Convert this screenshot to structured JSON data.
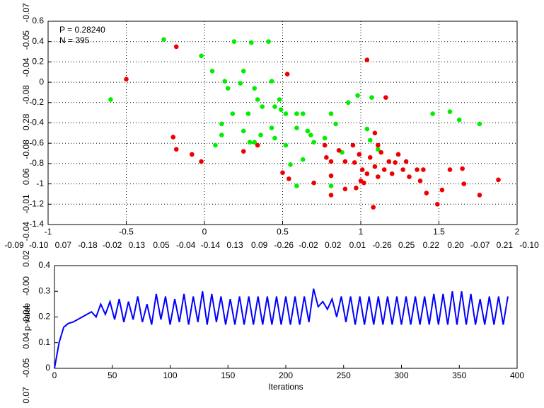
{
  "chart_data": [
    {
      "type": "scatter",
      "annotations": [
        "P = 0.28240",
        "N = 395"
      ],
      "xlim": [
        -1,
        2
      ],
      "xticks": [
        -1,
        -0.5,
        0,
        0.5,
        1,
        1.5,
        2
      ],
      "ylim": [
        -1.4,
        0.6
      ],
      "yticks": [
        -1.4,
        -1.2,
        -1,
        -0.8,
        -0.6,
        -0.4,
        -0.2,
        0,
        0.2,
        0.4,
        0.6
      ],
      "grid": true,
      "series": [
        {
          "color": "#00ee00",
          "x": [
            -0.6,
            -0.26,
            -0.02,
            0.05,
            0.19,
            0.3,
            0.41,
            0.13,
            0.25,
            0.23,
            0.15,
            0.32,
            0.43,
            0.34,
            0.18,
            0.28,
            0.37,
            0.48,
            0.49,
            0.52,
            0.59,
            0.63,
            0.11,
            0.11,
            0.07,
            0.25,
            0.36,
            0.43,
            0.45,
            0.52,
            0.59,
            0.66,
            0.7,
            0.77,
            0.84,
            0.81,
            0.92,
            0.98,
            1.07,
            1.04,
            1.06,
            1.11,
            1.46,
            1.57,
            1.63,
            1.76,
            0.63,
            0.55,
            0.59,
            0.81,
            0.88,
            0.32,
            0.29,
            0.45,
            0.68
          ],
          "values": [
            -0.17,
            0.42,
            0.26,
            0.11,
            0.4,
            0.39,
            0.4,
            0.01,
            0.11,
            -0.01,
            -0.06,
            -0.06,
            0.01,
            -0.17,
            -0.31,
            -0.31,
            -0.24,
            -0.17,
            -0.27,
            -0.31,
            -0.31,
            -0.31,
            -0.41,
            -0.52,
            -0.62,
            -0.48,
            -0.52,
            -0.45,
            -0.55,
            -0.62,
            -0.45,
            -0.48,
            -0.59,
            -0.55,
            -0.41,
            -0.31,
            -0.2,
            -0.13,
            -0.15,
            -0.46,
            -0.57,
            -0.66,
            -0.31,
            -0.29,
            -0.37,
            -0.41,
            -0.76,
            -0.81,
            -1.02,
            -1.02,
            -0.69,
            -0.59,
            -0.59,
            -0.24,
            -0.52
          ]
        },
        {
          "color": "#ee0000",
          "x": [
            -0.5,
            -0.18,
            -0.2,
            -0.18,
            -0.08,
            -0.02,
            0.25,
            0.34,
            0.53,
            1.04,
            1.16,
            0.5,
            0.54,
            0.77,
            0.78,
            0.81,
            0.86,
            0.9,
            0.95,
            0.96,
            0.99,
            1.01,
            1.04,
            1.06,
            1.09,
            1.11,
            1.13,
            1.15,
            1.18,
            1.2,
            1.22,
            1.24,
            1.27,
            1.29,
            1.31,
            1.36,
            1.4,
            1.42,
            1.38,
            1.49,
            1.52,
            1.57,
            1.65,
            1.66,
            1.76,
            1.88,
            1.08,
            0.9,
            0.81,
            0.7,
            0.97,
            1.0,
            1.02,
            1.11,
            1.09,
            0.81
          ],
          "values": [
            0.03,
            0.35,
            -0.54,
            -0.66,
            -0.71,
            -0.78,
            -0.68,
            -0.62,
            0.08,
            0.22,
            -0.15,
            -0.89,
            -0.95,
            -0.62,
            -0.74,
            -0.78,
            -0.67,
            -0.78,
            -0.62,
            -0.79,
            -0.71,
            -0.86,
            -0.9,
            -0.74,
            -0.83,
            -0.93,
            -0.69,
            -0.86,
            -0.78,
            -0.9,
            -0.79,
            -0.71,
            -0.86,
            -0.78,
            -0.93,
            -0.86,
            -0.86,
            -1.09,
            -0.97,
            -1.2,
            -1.06,
            -0.86,
            -0.85,
            -1.0,
            -1.11,
            -0.96,
            -1.23,
            -1.05,
            -1.11,
            -0.99,
            -1.04,
            -0.97,
            -0.99,
            -0.62,
            -0.5,
            -0.92
          ]
        }
      ]
    },
    {
      "type": "line",
      "x_label": "Iterations",
      "y_label": "p-value",
      "xlim": [
        0,
        400
      ],
      "xticks": [
        0,
        50,
        100,
        150,
        200,
        250,
        300,
        350,
        400
      ],
      "ylim": [
        0,
        0.4
      ],
      "yticks": [
        0,
        0.1,
        0.2,
        0.3,
        0.4
      ],
      "grid": false,
      "x": [
        0,
        4,
        8,
        12,
        16,
        20,
        24,
        28,
        32,
        36,
        40,
        44,
        48,
        52,
        56,
        60,
        64,
        68,
        72,
        76,
        80,
        84,
        88,
        92,
        96,
        100,
        104,
        108,
        112,
        116,
        120,
        124,
        128,
        132,
        136,
        140,
        144,
        148,
        152,
        156,
        160,
        164,
        168,
        172,
        176,
        180,
        184,
        188,
        192,
        196,
        200,
        204,
        208,
        212,
        216,
        220,
        224,
        228,
        232,
        236,
        240,
        244,
        248,
        252,
        256,
        260,
        264,
        268,
        272,
        276,
        280,
        284,
        288,
        292,
        296,
        300,
        304,
        308,
        312,
        316,
        320,
        324,
        328,
        332,
        336,
        340,
        344,
        348,
        352,
        356,
        360,
        364,
        368,
        372,
        376,
        380,
        384,
        388,
        392
      ],
      "series": [
        {
          "color": "#0000ff",
          "values": [
            0,
            0.1,
            0.16,
            0.175,
            0.18,
            0.19,
            0.2,
            0.21,
            0.22,
            0.2,
            0.25,
            0.21,
            0.26,
            0.19,
            0.27,
            0.18,
            0.26,
            0.19,
            0.28,
            0.18,
            0.25,
            0.17,
            0.29,
            0.19,
            0.28,
            0.17,
            0.27,
            0.18,
            0.29,
            0.17,
            0.28,
            0.18,
            0.3,
            0.17,
            0.29,
            0.18,
            0.28,
            0.17,
            0.27,
            0.17,
            0.28,
            0.17,
            0.28,
            0.17,
            0.28,
            0.17,
            0.28,
            0.17,
            0.28,
            0.17,
            0.28,
            0.17,
            0.28,
            0.17,
            0.28,
            0.18,
            0.31,
            0.24,
            0.26,
            0.23,
            0.27,
            0.2,
            0.28,
            0.18,
            0.28,
            0.17,
            0.28,
            0.17,
            0.28,
            0.17,
            0.28,
            0.17,
            0.28,
            0.17,
            0.28,
            0.17,
            0.28,
            0.17,
            0.28,
            0.17,
            0.28,
            0.17,
            0.29,
            0.17,
            0.29,
            0.17,
            0.3,
            0.17,
            0.3,
            0.17,
            0.29,
            0.17,
            0.27,
            0.17,
            0.28,
            0.17,
            0.28,
            0.17,
            0.28
          ]
        }
      ]
    }
  ],
  "overlay_labels": {
    "row": [
      "-0.09",
      "-0.10",
      "0.07",
      "-0.18",
      "-0.02",
      "0.13",
      "0.05",
      "-0.04",
      "-0.14",
      "0.13",
      "0.09",
      "-0.26",
      "-0.02",
      "0.02",
      "0.01",
      "-0.26",
      "0.25",
      "0.22",
      "0.20",
      "-0.07",
      "0.21",
      "-0.10"
    ],
    "column": [
      "-0.07",
      "-0.05",
      "-0.04",
      "-0.08",
      "0.28",
      "-0.08",
      "0.06",
      "-0.01",
      "-0.04",
      "0.02",
      "-0.00",
      "0.04",
      "0.04",
      "-0.05",
      "0.07"
    ]
  }
}
